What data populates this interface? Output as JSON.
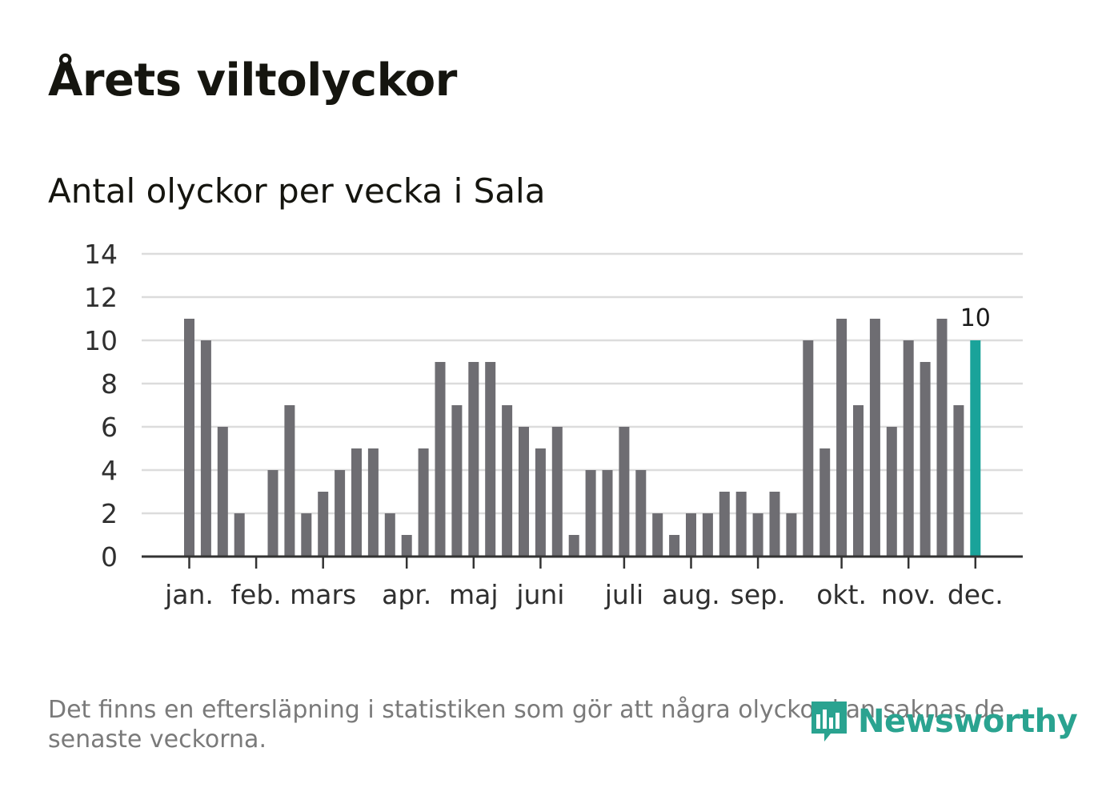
{
  "title": "Årets viltolyckor",
  "subtitle": "Antal olyckor per vecka i Sala",
  "footnote": "Det finns en eftersläpning i statistiken som gör att några olyckor kan saknas de senaste veckorna.",
  "logo": {
    "text": "Newsworthy",
    "icon": "newsworthy-bars-icon",
    "color": "#2aa390"
  },
  "colors": {
    "bar": "#6e6d72",
    "highlight": "#1aa39a",
    "grid": "#dcdcdc",
    "axis": "#333333"
  },
  "chart_data": {
    "type": "bar",
    "ylim": [
      0,
      14
    ],
    "yticks": [
      0,
      2,
      4,
      6,
      8,
      10,
      12,
      14
    ],
    "grid": true,
    "values": [
      11,
      10,
      6,
      2,
      0,
      4,
      7,
      2,
      3,
      4,
      5,
      5,
      2,
      1,
      5,
      9,
      7,
      9,
      9,
      7,
      6,
      5,
      6,
      1,
      4,
      4,
      6,
      4,
      2,
      1,
      2,
      2,
      3,
      3,
      2,
      3,
      2,
      10,
      5,
      11,
      7,
      11,
      6,
      10,
      9,
      11,
      7,
      10
    ],
    "highlight_index": 47,
    "highlight_label": "10",
    "month_labels": [
      {
        "label": "jan.",
        "bar": 0
      },
      {
        "label": "feb.",
        "bar": 4
      },
      {
        "label": "mars",
        "bar": 8
      },
      {
        "label": "apr.",
        "bar": 13
      },
      {
        "label": "maj",
        "bar": 17
      },
      {
        "label": "juni",
        "bar": 21
      },
      {
        "label": "juli",
        "bar": 26
      },
      {
        "label": "aug.",
        "bar": 30
      },
      {
        "label": "sep.",
        "bar": 34
      },
      {
        "label": "okt.",
        "bar": 39
      },
      {
        "label": "nov.",
        "bar": 43
      },
      {
        "label": "dec.",
        "bar": 47
      }
    ]
  }
}
